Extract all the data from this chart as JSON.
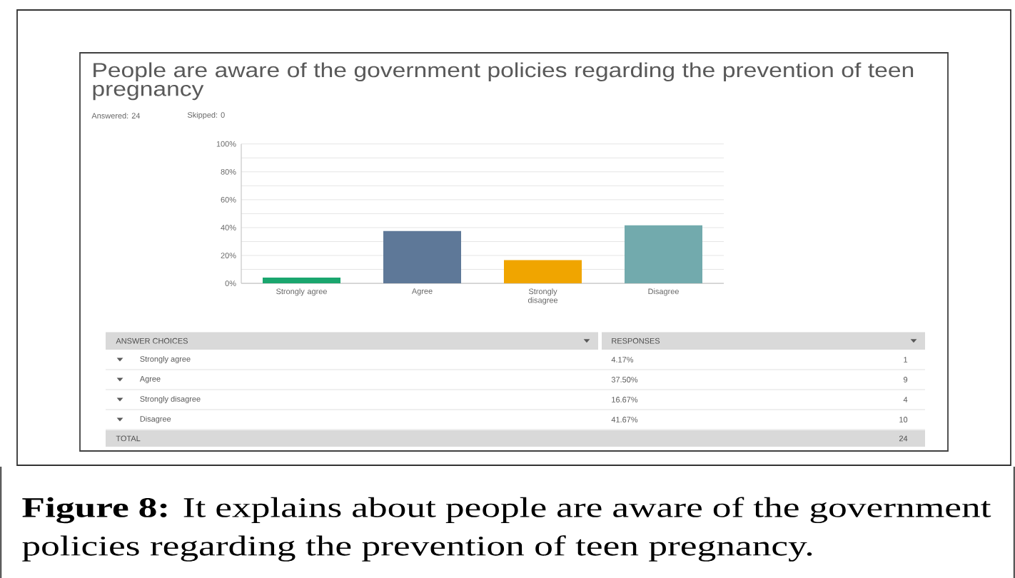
{
  "chart_data": {
    "type": "bar",
    "title": "People are aware of the government policies regarding the prevention of teen pregnancy",
    "subtitle": "Answered: 24",
    "categories": [
      "Strongly agree",
      "Agree",
      "Strongly disagree",
      "Disagree"
    ],
    "values": [
      4.17,
      37.5,
      16.67,
      41.67
    ],
    "colors": [
      "#1aa66e",
      "#5e7898",
      "#f0a500",
      "#72aaad"
    ],
    "ylim": [
      0,
      100
    ],
    "yticks": [
      {
        "value": 0,
        "label": "0%"
      },
      {
        "value": 10,
        "label": null
      },
      {
        "value": 20,
        "label": "20%"
      },
      {
        "value": 30,
        "label": null
      },
      {
        "value": 40,
        "label": "40%"
      },
      {
        "value": 50,
        "label": null
      },
      {
        "value": 60,
        "label": "60%"
      },
      {
        "value": 70,
        "label": null
      },
      {
        "value": 80,
        "label": "80%"
      },
      {
        "value": 90,
        "label": null
      },
      {
        "value": 100,
        "label": "100%"
      }
    ],
    "grid": "y",
    "annotations": [
      "Skipped: 0",
      "ANSWER CHOICES",
      "RESPONSES",
      "4.17%",
      "1",
      "37.50%",
      "9",
      "16.67%",
      "4",
      "41.67%",
      "10",
      "TOTAL",
      "24",
      "**Figure 8:** It explains about people are aware of the government policies regarding the prevention of teen pregnancy."
    ]
  }
}
